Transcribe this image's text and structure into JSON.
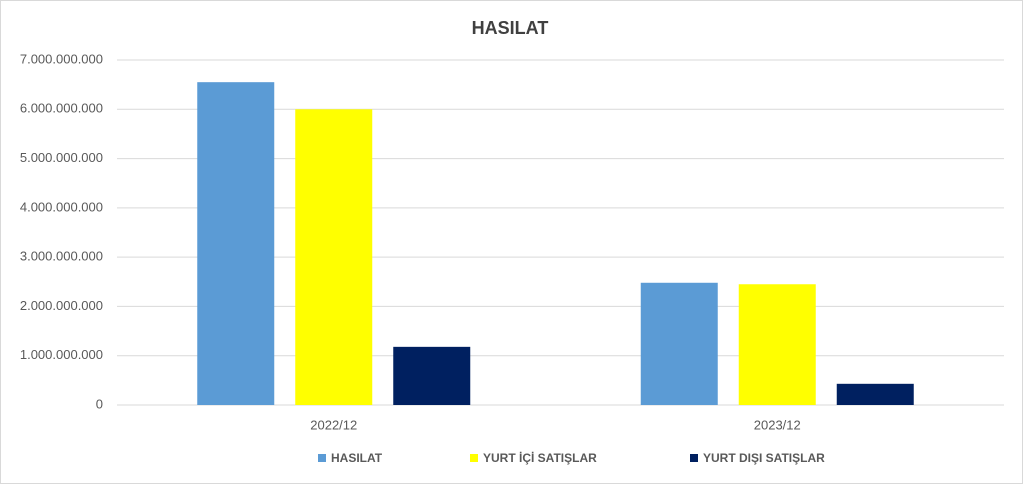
{
  "chart_data": {
    "type": "bar",
    "title": "HASILAT",
    "categories": [
      "2022/12",
      "2023/12"
    ],
    "series": [
      {
        "name": "HASILAT",
        "color": "#5b9bd5",
        "values": [
          6550000000,
          2480000000
        ]
      },
      {
        "name": "YURT İÇİ SATIŞLAR",
        "color": "#ffff00",
        "values": [
          6000000000,
          2450000000
        ]
      },
      {
        "name": "YURT DIŞI SATIŞLAR",
        "color": "#002060",
        "values": [
          1180000000,
          430000000
        ]
      }
    ],
    "ylim": [
      0,
      7000000000
    ],
    "yticks": [
      0,
      {
        "value": 1000000000,
        "label": "1.000.000.000"
      },
      {
        "value": 2000000000,
        "label": "2.000.000.000"
      },
      {
        "value": 3000000000,
        "label": "3.000.000.000"
      },
      {
        "value": 4000000000,
        "label": "4.000.000.000"
      },
      {
        "value": 5000000000,
        "label": "5.000.000.000"
      },
      {
        "value": 6000000000,
        "label": "6.000.000.000"
      },
      {
        "value": 7000000000,
        "label": "7.000.000.000"
      }
    ],
    "grid": true,
    "legend": "bottom"
  }
}
